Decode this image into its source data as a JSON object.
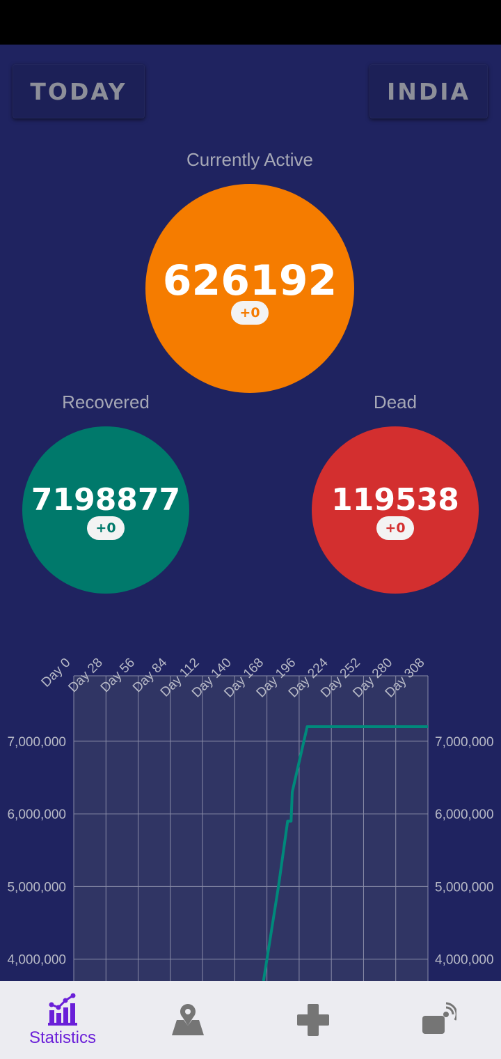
{
  "header": {
    "today_button": "TODAY",
    "country_button": "INDIA"
  },
  "stats": {
    "active": {
      "label": "Currently Active",
      "value": "626192",
      "delta": "+0",
      "color": "#f57c00"
    },
    "recovered": {
      "label": "Recovered",
      "value": "7198877",
      "delta": "+0",
      "color": "#00796b"
    },
    "dead": {
      "label": "Dead",
      "value": "119538",
      "delta": "+0",
      "color": "#d32f2f"
    }
  },
  "chart_data": {
    "type": "line",
    "x_tick_labels": [
      "Day 0",
      "Day 28",
      "Day 56",
      "Day 84",
      "Day 112",
      "Day 140",
      "Day 168",
      "Day 196",
      "Day 224",
      "Day 252",
      "Day 280",
      "Day 308"
    ],
    "y_tick_labels": [
      "7,000,000",
      "6,000,000",
      "5,000,000",
      "4,000,000"
    ],
    "y_ticks": [
      7000000,
      6000000,
      5000000,
      4000000
    ],
    "x_range": [
      0,
      308
    ],
    "y_visible_range": [
      3700000,
      7900000
    ],
    "grid": true,
    "series": [
      {
        "color": "#00897b",
        "x": [
          165,
          178,
          186,
          187,
          189,
          190,
          203,
          280,
          308
        ],
        "y": [
          3700000,
          5000000,
          5900000,
          5900000,
          5900000,
          6300000,
          7200000,
          7200000,
          7200000
        ]
      }
    ]
  },
  "nav": {
    "items": [
      {
        "name": "statistics",
        "label": "Statistics",
        "icon": "bar-chart-icon",
        "active": true
      },
      {
        "name": "map",
        "label": "",
        "icon": "map-pin-icon",
        "active": false
      },
      {
        "name": "health",
        "label": "",
        "icon": "medical-cross-icon",
        "active": false
      },
      {
        "name": "info",
        "label": "",
        "icon": "broadcast-icon",
        "active": false
      }
    ],
    "active_color": "#6a1fd8",
    "inactive_color": "#757575"
  }
}
